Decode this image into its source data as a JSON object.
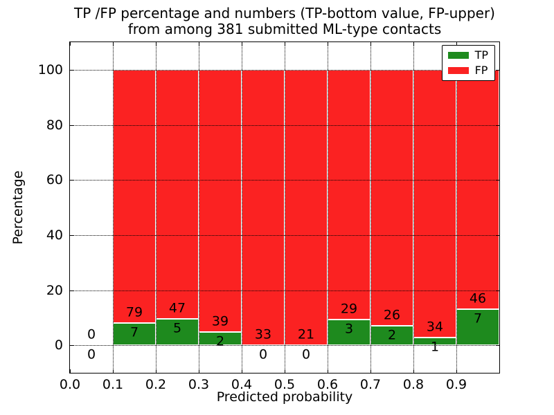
{
  "figure": {
    "title_line1": "TP /FP percentage and numbers (TP-bottom value, FP-upper)",
    "title_line2": "from among 381 submitted ML-type contacts",
    "xlabel": "Predicted probability",
    "ylabel": "Percentage"
  },
  "legend": {
    "position": "upper-right",
    "items": [
      {
        "label": "TP",
        "color": "#1e8a1e"
      },
      {
        "label": "FP",
        "color": "#fb2222"
      }
    ]
  },
  "chart_data": {
    "type": "bar",
    "stacked": true,
    "title": "TP /FP percentage and numbers (TP-bottom value, FP-upper) from among 381 submitted ML-type contacts",
    "xlabel": "Predicted probability",
    "ylabel": "Percentage",
    "xlim": [
      0.0,
      1.0
    ],
    "ylim": [
      -10,
      110
    ],
    "xticks": [
      {
        "value": 0.0,
        "label": "0.0"
      },
      {
        "value": 0.1,
        "label": "0.1"
      },
      {
        "value": 0.2,
        "label": "0.2"
      },
      {
        "value": 0.3,
        "label": "0.3"
      },
      {
        "value": 0.4,
        "label": "0.4"
      },
      {
        "value": 0.5,
        "label": "0.5"
      },
      {
        "value": 0.6,
        "label": "0.6"
      },
      {
        "value": 0.7,
        "label": "0.7"
      },
      {
        "value": 0.8,
        "label": "0.8"
      },
      {
        "value": 0.9,
        "label": "0.9"
      }
    ],
    "yticks": [
      {
        "value": 0,
        "label": "0"
      },
      {
        "value": 20,
        "label": "20"
      },
      {
        "value": 40,
        "label": "40"
      },
      {
        "value": 60,
        "label": "60"
      },
      {
        "value": 80,
        "label": "80"
      },
      {
        "value": 100,
        "label": "100"
      }
    ],
    "grid": {
      "style": "dotted",
      "color": "#000000",
      "drawn_above_bars": true
    },
    "total_submitted": 381,
    "colors": {
      "tp": "#1e8a1e",
      "fp": "#fb2222",
      "bar_edge": "#ffffff"
    },
    "series_names": [
      "TP",
      "FP"
    ],
    "bins": [
      {
        "x0": 0.0,
        "x1": 0.1,
        "tp_count": 0,
        "fp_count": 0,
        "tp_pct": 0,
        "fp_pct": 0,
        "has_bar": false
      },
      {
        "x0": 0.1,
        "x1": 0.2,
        "tp_count": 7,
        "fp_count": 79,
        "tp_pct": 8.14,
        "fp_pct": 91.86,
        "has_bar": true
      },
      {
        "x0": 0.2,
        "x1": 0.3,
        "tp_count": 5,
        "fp_count": 47,
        "tp_pct": 9.62,
        "fp_pct": 90.38,
        "has_bar": true
      },
      {
        "x0": 0.3,
        "x1": 0.4,
        "tp_count": 2,
        "fp_count": 39,
        "tp_pct": 4.88,
        "fp_pct": 95.12,
        "has_bar": true
      },
      {
        "x0": 0.4,
        "x1": 0.5,
        "tp_count": 0,
        "fp_count": 33,
        "tp_pct": 0,
        "fp_pct": 100,
        "has_bar": true
      },
      {
        "x0": 0.5,
        "x1": 0.6,
        "tp_count": 0,
        "fp_count": 21,
        "tp_pct": 0,
        "fp_pct": 100,
        "has_bar": true
      },
      {
        "x0": 0.6,
        "x1": 0.7,
        "tp_count": 3,
        "fp_count": 29,
        "tp_pct": 9.38,
        "fp_pct": 90.62,
        "has_bar": true
      },
      {
        "x0": 0.7,
        "x1": 0.8,
        "tp_count": 2,
        "fp_count": 26,
        "tp_pct": 7.14,
        "fp_pct": 92.86,
        "has_bar": true
      },
      {
        "x0": 0.8,
        "x1": 0.9,
        "tp_count": 1,
        "fp_count": 34,
        "tp_pct": 2.86,
        "fp_pct": 97.14,
        "has_bar": true
      },
      {
        "x0": 0.9,
        "x1": 1.0,
        "tp_count": 7,
        "fp_count": 46,
        "tp_pct": 13.21,
        "fp_pct": 86.79,
        "has_bar": true
      }
    ]
  }
}
